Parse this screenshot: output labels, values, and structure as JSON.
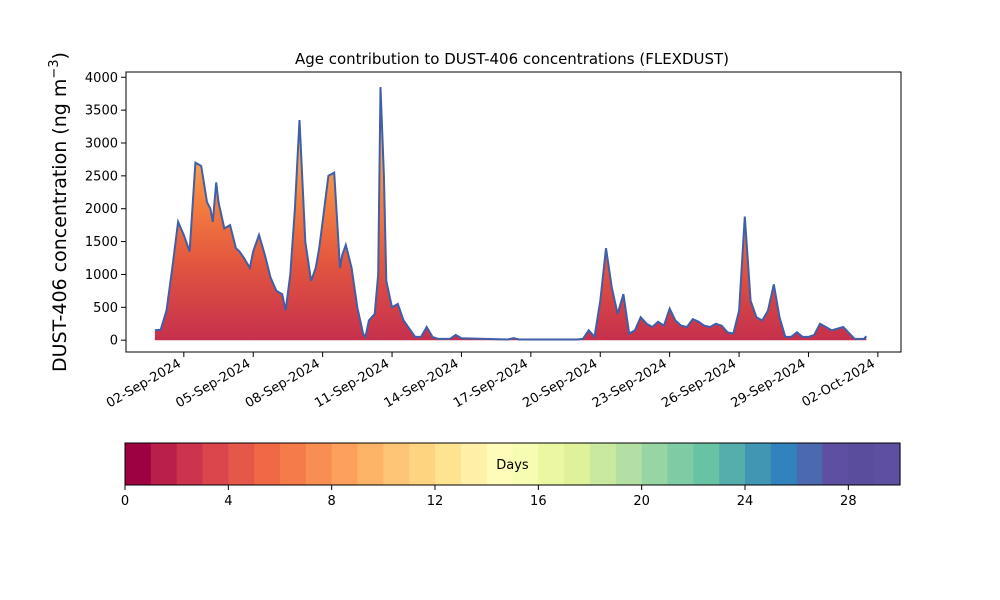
{
  "chart_data": {
    "type": "area",
    "title": "Age contribution to DUST-406 concentrations (FLEXDUST)",
    "ylabel": "DUST-406 concentration (ng m",
    "ylabel_superscript": "−3",
    "ylabel_close": ")",
    "xlabel": "",
    "ylim": [
      -180,
      4080
    ],
    "yticks": [
      0,
      500,
      1000,
      1500,
      2000,
      2500,
      3000,
      3500,
      4000
    ],
    "xlim": [
      "2024-08-30 12:00",
      "2024-10-03 00:00"
    ],
    "xticks": [
      "02-Sep-2024",
      "05-Sep-2024",
      "08-Sep-2024",
      "11-Sep-2024",
      "14-Sep-2024",
      "17-Sep-2024",
      "20-Sep-2024",
      "23-Sep-2024",
      "26-Sep-2024",
      "29-Sep-2024",
      "02-Oct-2024"
    ],
    "xtick_days": [
      3,
      6,
      9,
      12,
      15,
      18,
      21,
      24,
      27,
      30,
      33
    ],
    "grid": false,
    "total_line_color": "#3f5fa8",
    "total_series": {
      "name": "total",
      "x_days": [
        1.75,
        2.0,
        2.25,
        2.5,
        2.75,
        3.0,
        3.25,
        3.5,
        3.75,
        4.0,
        4.15,
        4.25,
        4.4,
        4.5,
        4.75,
        5.0,
        5.25,
        5.4,
        5.6,
        5.85,
        6.0,
        6.25,
        6.5,
        6.75,
        7.0,
        7.25,
        7.4,
        7.6,
        7.8,
        8.0,
        8.25,
        8.5,
        8.7,
        8.85,
        9.0,
        9.25,
        9.5,
        9.75,
        9.85,
        10.0,
        10.25,
        10.5,
        10.75,
        10.85,
        11.0,
        11.25,
        11.4,
        11.5,
        11.65,
        11.75,
        12.0,
        12.25,
        12.5,
        13.0,
        13.25,
        13.5,
        13.75,
        14.0,
        14.25,
        14.5,
        14.75,
        15.0,
        16.0,
        17.0,
        17.25,
        17.5,
        18.0,
        19.0,
        20.0,
        20.25,
        20.5,
        20.75,
        21.0,
        21.25,
        21.5,
        21.75,
        22.0,
        22.25,
        22.5,
        22.75,
        23.0,
        23.25,
        23.5,
        23.75,
        24.0,
        24.25,
        24.5,
        24.75,
        25.0,
        25.25,
        25.5,
        25.75,
        26.0,
        26.25,
        26.5,
        26.75,
        27.0,
        27.25,
        27.5,
        27.75,
        28.0,
        28.25,
        28.5,
        28.75,
        29.0,
        29.25,
        29.5,
        29.75,
        30.0,
        30.25,
        30.5,
        30.75,
        31.0,
        31.5,
        32.0,
        32.25,
        32.4,
        32.5
      ],
      "values": [
        150,
        160,
        450,
        1100,
        1800,
        1600,
        1350,
        2700,
        2650,
        2100,
        2000,
        1800,
        2400,
        2100,
        1700,
        1750,
        1400,
        1350,
        1250,
        1100,
        1350,
        1600,
        1300,
        950,
        750,
        700,
        450,
        1000,
        2000,
        3350,
        1500,
        900,
        1100,
        1400,
        1800,
        2500,
        2550,
        1100,
        1300,
        1450,
        1100,
        500,
        100,
        50,
        300,
        400,
        1000,
        3850,
        2500,
        900,
        500,
        550,
        300,
        50,
        50,
        200,
        50,
        20,
        20,
        20,
        80,
        30,
        20,
        10,
        30,
        10,
        10,
        10,
        10,
        20,
        150,
        50,
        600,
        1400,
        800,
        400,
        700,
        100,
        150,
        350,
        250,
        200,
        280,
        220,
        480,
        300,
        220,
        200,
        320,
        280,
        220,
        200,
        250,
        220,
        120,
        100,
        450,
        1880,
        600,
        350,
        300,
        450,
        850,
        350,
        50,
        50,
        120,
        50,
        50,
        80,
        250,
        200,
        150,
        200,
        20,
        20,
        20,
        60
      ]
    },
    "colorbar": {
      "label": "Days",
      "min": 0,
      "max": 30,
      "ticks": [
        0,
        4,
        8,
        12,
        16,
        20,
        24,
        28
      ],
      "colors": [
        "#9e0142",
        "#b91f48",
        "#cc344d",
        "#da464c",
        "#e55749",
        "#f06944",
        "#f67b4a",
        "#f98e52",
        "#fca05b",
        "#fdb467",
        "#fdc574",
        "#fed481",
        "#fee391",
        "#fff1a8",
        "#fffcba",
        "#f7fcb3",
        "#ecf7a2",
        "#dff299",
        "#c9e99e",
        "#b3e0a2",
        "#98d5a4",
        "#7ecba4",
        "#68c2a4",
        "#55aeab",
        "#4196b4",
        "#3182bd",
        "#4a69ae",
        "#5e4fa2",
        "#5a4d9e",
        "#5e4fa2"
      ]
    }
  }
}
